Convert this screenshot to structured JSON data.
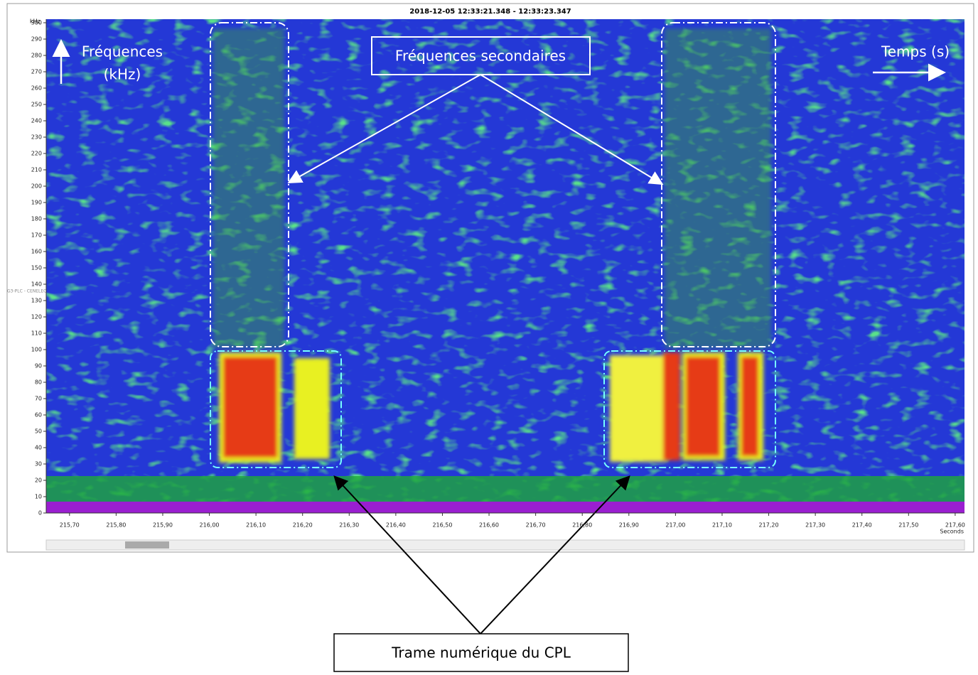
{
  "chart_data": {
    "type": "spectrogram",
    "title": "2018-12-05 12:33:21.348 - 12:33:23.347",
    "y_unit": "kHz",
    "x_unit": "Seconds",
    "side_label": "G3-PLC - CENELEC",
    "ylim": [
      0,
      300
    ],
    "yticks": [
      0,
      10,
      20,
      30,
      40,
      50,
      60,
      70,
      80,
      90,
      100,
      110,
      120,
      130,
      140,
      150,
      160,
      170,
      180,
      190,
      200,
      210,
      220,
      230,
      240,
      250,
      260,
      270,
      280,
      290,
      300
    ],
    "xlim": [
      215.65,
      217.62
    ],
    "xticks": [
      {
        "value": 215.7,
        "label": "215,70"
      },
      {
        "value": 215.8,
        "label": "215,80"
      },
      {
        "value": 215.9,
        "label": "215,90"
      },
      {
        "value": 216.0,
        "label": "216,00"
      },
      {
        "value": 216.1,
        "label": "216,10"
      },
      {
        "value": 216.2,
        "label": "216,20"
      },
      {
        "value": 216.3,
        "label": "216,30"
      },
      {
        "value": 216.4,
        "label": "216,40"
      },
      {
        "value": 216.5,
        "label": "216,50"
      },
      {
        "value": 216.6,
        "label": "216,60"
      },
      {
        "value": 216.7,
        "label": "216,70"
      },
      {
        "value": 216.8,
        "label": "216,80"
      },
      {
        "value": 216.9,
        "label": "216,90"
      },
      {
        "value": 217.0,
        "label": "217,00"
      },
      {
        "value": 217.1,
        "label": "217,10"
      },
      {
        "value": 217.2,
        "label": "217,20"
      },
      {
        "value": 217.3,
        "label": "217,30"
      },
      {
        "value": 217.4,
        "label": "217,40"
      },
      {
        "value": 217.5,
        "label": "217,50"
      },
      {
        "value": 217.6,
        "label": "217,60"
      }
    ],
    "annotations": {
      "frequency_axis": [
        "Fréquences",
        "(kHz)"
      ],
      "time_axis": "Temps (s)",
      "secondary": "Fréquences secondaires",
      "frame": "Trame numérique du CPL"
    }
  }
}
